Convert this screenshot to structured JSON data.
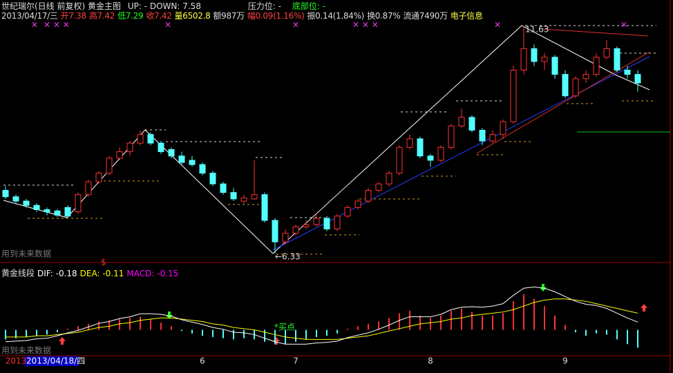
{
  "header": {
    "title": "世纪瑞尔(日线 前复权) 黄金主图",
    "updown": "UP: - DOWN: 7.58",
    "pressure": "压力位: -",
    "bottom": "底部位: -",
    "date": "2013/04/17/三",
    "open": "开7.38",
    "high": "高7.42",
    "low": "低7.29",
    "close": "收7.42",
    "volume": "量6502.8",
    "amount": "额987万",
    "change": "幅0.09(1.16%)",
    "amplitude": "振0.14(1.84%)",
    "turnover": "换0.87%",
    "float": "流通7490万",
    "sector": "电子信息"
  },
  "chart_data": {
    "type": "candlestick",
    "ylim": [
      6.2,
      11.75
    ],
    "up_color": "#ff3232",
    "down_color": "#54ffff",
    "categories": [
      null,
      "2013",
      null,
      null,
      null,
      null,
      null,
      null,
      null,
      null,
      null,
      null,
      null,
      null,
      null,
      null,
      null,
      null,
      null,
      "6",
      null,
      null,
      null,
      null,
      null,
      null,
      null,
      null,
      "7",
      null,
      null,
      null,
      null,
      null,
      null,
      null,
      null,
      null,
      null,
      null,
      null,
      "8",
      null,
      null,
      null,
      null,
      null,
      null,
      null,
      null,
      null,
      null,
      null,
      null,
      "9",
      null,
      null,
      null,
      null,
      null,
      null,
      null
    ],
    "ohlc": [
      [
        7.8,
        7.9,
        7.6,
        7.65
      ],
      [
        7.65,
        7.7,
        7.5,
        7.55
      ],
      [
        7.55,
        7.6,
        7.4,
        7.45
      ],
      [
        7.45,
        7.5,
        7.3,
        7.35
      ],
      [
        7.35,
        7.4,
        7.22,
        7.3
      ],
      [
        7.32,
        7.36,
        7.18,
        7.22
      ],
      [
        7.4,
        7.45,
        7.16,
        7.2
      ],
      [
        7.3,
        7.75,
        7.25,
        7.7
      ],
      [
        7.7,
        8.05,
        7.65,
        8.0
      ],
      [
        8.0,
        8.25,
        7.95,
        8.2
      ],
      [
        8.2,
        8.6,
        8.15,
        8.55
      ],
      [
        8.55,
        8.8,
        8.5,
        8.7
      ],
      [
        8.7,
        8.95,
        8.6,
        8.9
      ],
      [
        8.9,
        9.2,
        8.85,
        9.1
      ],
      [
        9.1,
        9.15,
        8.85,
        8.9
      ],
      [
        8.9,
        8.95,
        8.65,
        8.7
      ],
      [
        8.75,
        8.8,
        8.55,
        8.6
      ],
      [
        8.6,
        8.7,
        8.4,
        8.45
      ],
      [
        8.5,
        8.6,
        8.35,
        8.4
      ],
      [
        8.4,
        8.45,
        8.15,
        8.2
      ],
      [
        8.2,
        8.25,
        7.9,
        7.95
      ],
      [
        7.95,
        8.0,
        7.7,
        7.75
      ],
      [
        7.75,
        7.85,
        7.55,
        7.6
      ],
      [
        7.55,
        7.7,
        7.5,
        7.62
      ],
      [
        7.6,
        8.5,
        7.58,
        7.7
      ],
      [
        7.7,
        7.75,
        7.05,
        7.1
      ],
      [
        7.1,
        7.15,
        6.33,
        6.6
      ],
      [
        6.6,
        6.9,
        6.55,
        6.8
      ],
      [
        6.8,
        7.0,
        6.75,
        6.95
      ],
      [
        6.95,
        7.1,
        6.9,
        7.0
      ],
      [
        7.0,
        7.25,
        6.95,
        7.15
      ],
      [
        7.15,
        7.2,
        6.85,
        6.9
      ],
      [
        6.9,
        7.25,
        6.85,
        7.2
      ],
      [
        7.2,
        7.45,
        7.15,
        7.4
      ],
      [
        7.4,
        7.6,
        7.35,
        7.55
      ],
      [
        7.55,
        7.85,
        7.5,
        7.8
      ],
      [
        7.8,
        8.0,
        7.75,
        7.95
      ],
      [
        7.95,
        8.25,
        7.9,
        8.2
      ],
      [
        8.2,
        8.85,
        8.15,
        8.8
      ],
      [
        8.8,
        9.1,
        8.75,
        9.0
      ],
      [
        9.0,
        9.05,
        8.55,
        8.6
      ],
      [
        8.6,
        8.65,
        8.35,
        8.5
      ],
      [
        8.5,
        8.85,
        8.45,
        8.8
      ],
      [
        8.8,
        9.35,
        8.75,
        9.3
      ],
      [
        9.3,
        9.7,
        9.25,
        9.5
      ],
      [
        9.5,
        9.55,
        9.15,
        9.2
      ],
      [
        9.2,
        9.25,
        8.85,
        8.95
      ],
      [
        8.95,
        9.2,
        8.9,
        9.1
      ],
      [
        9.1,
        9.45,
        9.0,
        9.4
      ],
      [
        9.4,
        10.7,
        9.35,
        10.6
      ],
      [
        10.6,
        11.63,
        10.5,
        11.1
      ],
      [
        11.1,
        11.2,
        10.7,
        10.8
      ],
      [
        10.8,
        11.0,
        10.6,
        10.9
      ],
      [
        10.9,
        10.95,
        10.4,
        10.5
      ],
      [
        10.5,
        10.6,
        9.95,
        10.0
      ],
      [
        10.0,
        10.45,
        9.95,
        10.4
      ],
      [
        10.4,
        10.6,
        10.3,
        10.5
      ],
      [
        10.5,
        11.0,
        10.45,
        10.9
      ],
      [
        10.9,
        11.3,
        10.85,
        11.1
      ],
      [
        11.1,
        11.15,
        10.55,
        10.6
      ],
      [
        10.6,
        10.7,
        10.4,
        10.5
      ],
      [
        10.5,
        10.6,
        10.1,
        10.3
      ]
    ],
    "annotations": {
      "high": "11.63",
      "low": "←6.33",
      "future": "用到未来数据",
      "mark": "$"
    }
  },
  "indicator": {
    "type": "macd",
    "title": "黄金线段",
    "ylim": [
      -0.2,
      0.45
    ],
    "up_color": "#ff3232",
    "down_color": "#54ffff",
    "signal": "*买点",
    "future": "用到未来数据",
    "cursor_date": "2013/04/18/四",
    "series": [
      {
        "name": "DIF: -0.18",
        "color": "#ffffff",
        "values": [
          -0.1,
          -0.095,
          -0.09,
          -0.075,
          -0.07,
          -0.05,
          -0.025,
          -0.005,
          0.025,
          0.055,
          0.07,
          0.095,
          0.11,
          0.135,
          0.135,
          0.13,
          0.115,
          0.085,
          0.065,
          0.045,
          0.02,
          0.005,
          -0.02,
          -0.025,
          -0.04,
          -0.07,
          -0.1,
          -0.12,
          -0.12,
          -0.12,
          -0.11,
          -0.105,
          -0.095,
          -0.065,
          -0.045,
          -0.025,
          0.005,
          0.04,
          0.08,
          0.11,
          0.11,
          0.11,
          0.13,
          0.17,
          0.19,
          0.195,
          0.19,
          0.2,
          0.22,
          0.29,
          0.35,
          0.36,
          0.35,
          0.32,
          0.28,
          0.24,
          0.215,
          0.205,
          0.18,
          0.14,
          0.1,
          0.065
        ]
      },
      {
        "name": "DEA: -0.11",
        "color": "#ffff00",
        "values": [
          -0.06,
          -0.06,
          -0.06,
          -0.05,
          -0.05,
          -0.04,
          -0.03,
          -0.02,
          0.0,
          0.02,
          0.03,
          0.05,
          0.06,
          0.08,
          0.09,
          0.1,
          0.1,
          0.09,
          0.08,
          0.07,
          0.05,
          0.04,
          0.02,
          0.01,
          0.0,
          -0.02,
          -0.04,
          -0.06,
          -0.07,
          -0.08,
          -0.08,
          -0.08,
          -0.08,
          -0.07,
          -0.06,
          -0.05,
          -0.03,
          -0.01,
          0.01,
          0.03,
          0.05,
          0.06,
          0.07,
          0.09,
          0.1,
          0.12,
          0.13,
          0.14,
          0.15,
          0.17,
          0.2,
          0.23,
          0.25,
          0.26,
          0.26,
          0.25,
          0.24,
          0.22,
          0.2,
          0.18,
          0.16,
          0.14
        ]
      },
      {
        "name": "MACD: -0.15",
        "color": "#ff00ff",
        "values": [
          -0.08,
          -0.07,
          -0.06,
          -0.05,
          -0.04,
          -0.02,
          0.01,
          0.03,
          0.05,
          0.07,
          0.08,
          0.09,
          0.1,
          0.11,
          0.09,
          0.06,
          0.03,
          -0.01,
          -0.03,
          -0.05,
          -0.06,
          -0.07,
          -0.08,
          -0.07,
          -0.08,
          -0.1,
          -0.12,
          -0.12,
          -0.1,
          -0.08,
          -0.06,
          -0.05,
          -0.03,
          0.01,
          0.03,
          0.05,
          0.07,
          0.1,
          0.14,
          0.16,
          0.12,
          0.1,
          0.12,
          0.16,
          0.18,
          0.15,
          0.12,
          0.12,
          0.14,
          0.24,
          0.3,
          0.26,
          0.2,
          0.12,
          0.04,
          -0.02,
          -0.05,
          -0.03,
          -0.04,
          -0.08,
          -0.12,
          -0.15
        ]
      }
    ]
  }
}
